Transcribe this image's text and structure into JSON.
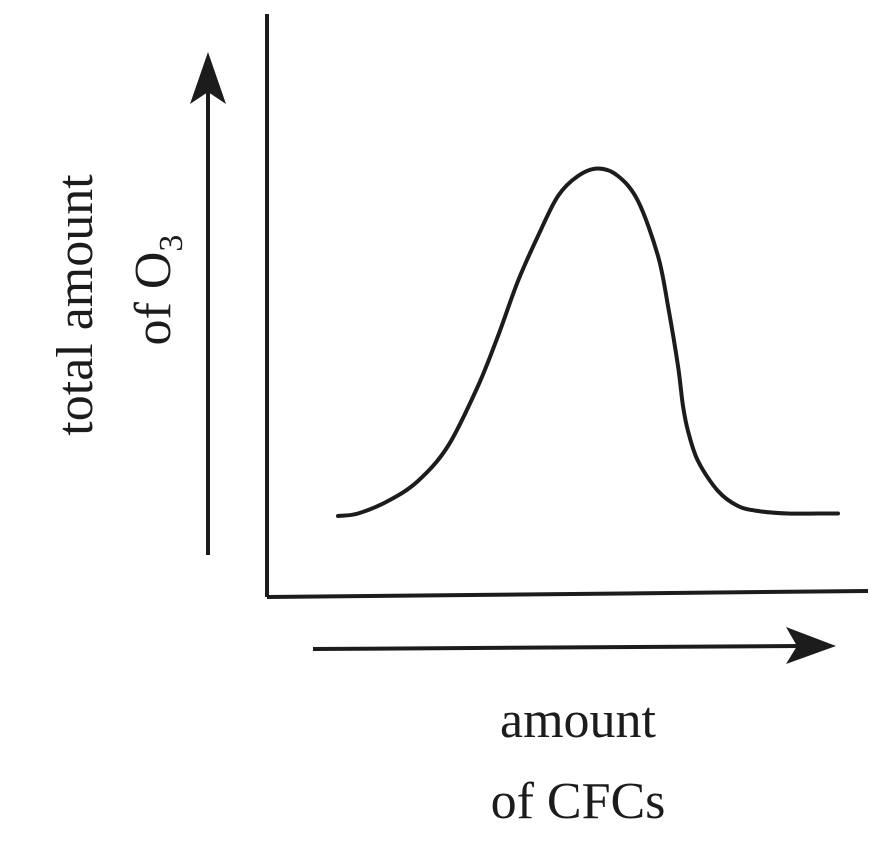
{
  "chart_data": {
    "type": "line",
    "title": "",
    "xlabel": {
      "line1": "amount",
      "line2": "of CFCs"
    },
    "ylabel": {
      "line1": "total amount",
      "line2_prefix": "of O",
      "line2_subscript": "3"
    },
    "x_ticks": [],
    "y_ticks": [],
    "grid": false,
    "legend": "none",
    "xlim": [
      0,
      100
    ],
    "ylim": [
      0,
      100
    ],
    "series": [
      {
        "color": "#1c1c1c",
        "x": [
          0,
          4,
          10,
          16,
          22,
          28,
          32,
          36,
          40,
          44,
          48,
          52,
          56,
          60,
          64,
          66,
          68,
          69,
          70,
          72,
          76,
          80,
          84,
          90,
          96,
          100
        ],
        "y": [
          16,
          16.5,
          19,
          23,
          30,
          42,
          52,
          63,
          72,
          80,
          84,
          85.5,
          84,
          79,
          68,
          58,
          46,
          38,
          33,
          27,
          21,
          18,
          17,
          16.5,
          16.5,
          16.5
        ]
      }
    ]
  }
}
